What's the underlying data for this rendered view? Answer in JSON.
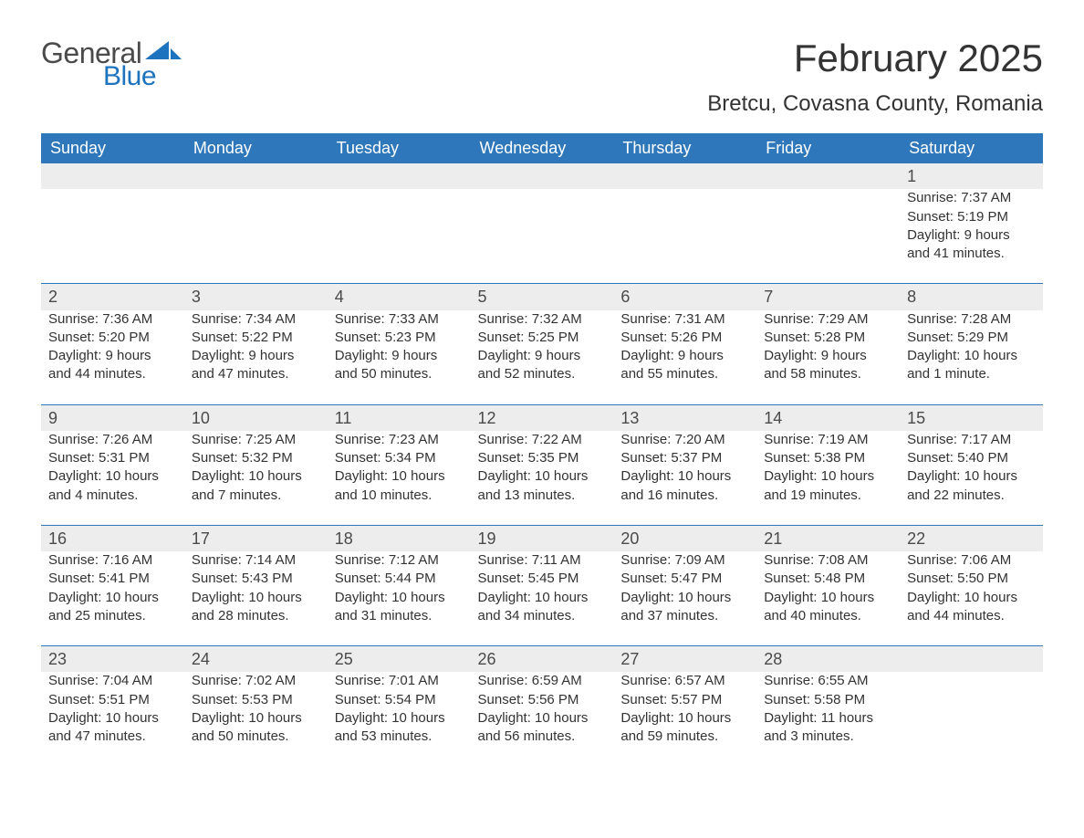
{
  "logo": {
    "general": "General",
    "blue": "Blue"
  },
  "title": "February 2025",
  "location": "Bretcu, Covasna County, Romania",
  "colors": {
    "header_bg": "#2e77bb",
    "header_text": "#ffffff",
    "daynum_bg": "#ededed",
    "row_divider": "#2e77bb",
    "text": "#333333",
    "logo_blue": "#1e73be",
    "logo_gray": "#4a4a4a",
    "page_bg": "#ffffff"
  },
  "typography": {
    "title_fontsize": 42,
    "location_fontsize": 24,
    "weekday_fontsize": 18,
    "daynum_fontsize": 18,
    "cell_fontsize": 15
  },
  "weekdays": [
    "Sunday",
    "Monday",
    "Tuesday",
    "Wednesday",
    "Thursday",
    "Friday",
    "Saturday"
  ],
  "weeks": [
    [
      null,
      null,
      null,
      null,
      null,
      null,
      {
        "day": "1",
        "sunrise": "Sunrise: 7:37 AM",
        "sunset": "Sunset: 5:19 PM",
        "daylight1": "Daylight: 9 hours",
        "daylight2": "and 41 minutes."
      }
    ],
    [
      {
        "day": "2",
        "sunrise": "Sunrise: 7:36 AM",
        "sunset": "Sunset: 5:20 PM",
        "daylight1": "Daylight: 9 hours",
        "daylight2": "and 44 minutes."
      },
      {
        "day": "3",
        "sunrise": "Sunrise: 7:34 AM",
        "sunset": "Sunset: 5:22 PM",
        "daylight1": "Daylight: 9 hours",
        "daylight2": "and 47 minutes."
      },
      {
        "day": "4",
        "sunrise": "Sunrise: 7:33 AM",
        "sunset": "Sunset: 5:23 PM",
        "daylight1": "Daylight: 9 hours",
        "daylight2": "and 50 minutes."
      },
      {
        "day": "5",
        "sunrise": "Sunrise: 7:32 AM",
        "sunset": "Sunset: 5:25 PM",
        "daylight1": "Daylight: 9 hours",
        "daylight2": "and 52 minutes."
      },
      {
        "day": "6",
        "sunrise": "Sunrise: 7:31 AM",
        "sunset": "Sunset: 5:26 PM",
        "daylight1": "Daylight: 9 hours",
        "daylight2": "and 55 minutes."
      },
      {
        "day": "7",
        "sunrise": "Sunrise: 7:29 AM",
        "sunset": "Sunset: 5:28 PM",
        "daylight1": "Daylight: 9 hours",
        "daylight2": "and 58 minutes."
      },
      {
        "day": "8",
        "sunrise": "Sunrise: 7:28 AM",
        "sunset": "Sunset: 5:29 PM",
        "daylight1": "Daylight: 10 hours",
        "daylight2": "and 1 minute."
      }
    ],
    [
      {
        "day": "9",
        "sunrise": "Sunrise: 7:26 AM",
        "sunset": "Sunset: 5:31 PM",
        "daylight1": "Daylight: 10 hours",
        "daylight2": "and 4 minutes."
      },
      {
        "day": "10",
        "sunrise": "Sunrise: 7:25 AM",
        "sunset": "Sunset: 5:32 PM",
        "daylight1": "Daylight: 10 hours",
        "daylight2": "and 7 minutes."
      },
      {
        "day": "11",
        "sunrise": "Sunrise: 7:23 AM",
        "sunset": "Sunset: 5:34 PM",
        "daylight1": "Daylight: 10 hours",
        "daylight2": "and 10 minutes."
      },
      {
        "day": "12",
        "sunrise": "Sunrise: 7:22 AM",
        "sunset": "Sunset: 5:35 PM",
        "daylight1": "Daylight: 10 hours",
        "daylight2": "and 13 minutes."
      },
      {
        "day": "13",
        "sunrise": "Sunrise: 7:20 AM",
        "sunset": "Sunset: 5:37 PM",
        "daylight1": "Daylight: 10 hours",
        "daylight2": "and 16 minutes."
      },
      {
        "day": "14",
        "sunrise": "Sunrise: 7:19 AM",
        "sunset": "Sunset: 5:38 PM",
        "daylight1": "Daylight: 10 hours",
        "daylight2": "and 19 minutes."
      },
      {
        "day": "15",
        "sunrise": "Sunrise: 7:17 AM",
        "sunset": "Sunset: 5:40 PM",
        "daylight1": "Daylight: 10 hours",
        "daylight2": "and 22 minutes."
      }
    ],
    [
      {
        "day": "16",
        "sunrise": "Sunrise: 7:16 AM",
        "sunset": "Sunset: 5:41 PM",
        "daylight1": "Daylight: 10 hours",
        "daylight2": "and 25 minutes."
      },
      {
        "day": "17",
        "sunrise": "Sunrise: 7:14 AM",
        "sunset": "Sunset: 5:43 PM",
        "daylight1": "Daylight: 10 hours",
        "daylight2": "and 28 minutes."
      },
      {
        "day": "18",
        "sunrise": "Sunrise: 7:12 AM",
        "sunset": "Sunset: 5:44 PM",
        "daylight1": "Daylight: 10 hours",
        "daylight2": "and 31 minutes."
      },
      {
        "day": "19",
        "sunrise": "Sunrise: 7:11 AM",
        "sunset": "Sunset: 5:45 PM",
        "daylight1": "Daylight: 10 hours",
        "daylight2": "and 34 minutes."
      },
      {
        "day": "20",
        "sunrise": "Sunrise: 7:09 AM",
        "sunset": "Sunset: 5:47 PM",
        "daylight1": "Daylight: 10 hours",
        "daylight2": "and 37 minutes."
      },
      {
        "day": "21",
        "sunrise": "Sunrise: 7:08 AM",
        "sunset": "Sunset: 5:48 PM",
        "daylight1": "Daylight: 10 hours",
        "daylight2": "and 40 minutes."
      },
      {
        "day": "22",
        "sunrise": "Sunrise: 7:06 AM",
        "sunset": "Sunset: 5:50 PM",
        "daylight1": "Daylight: 10 hours",
        "daylight2": "and 44 minutes."
      }
    ],
    [
      {
        "day": "23",
        "sunrise": "Sunrise: 7:04 AM",
        "sunset": "Sunset: 5:51 PM",
        "daylight1": "Daylight: 10 hours",
        "daylight2": "and 47 minutes."
      },
      {
        "day": "24",
        "sunrise": "Sunrise: 7:02 AM",
        "sunset": "Sunset: 5:53 PM",
        "daylight1": "Daylight: 10 hours",
        "daylight2": "and 50 minutes."
      },
      {
        "day": "25",
        "sunrise": "Sunrise: 7:01 AM",
        "sunset": "Sunset: 5:54 PM",
        "daylight1": "Daylight: 10 hours",
        "daylight2": "and 53 minutes."
      },
      {
        "day": "26",
        "sunrise": "Sunrise: 6:59 AM",
        "sunset": "Sunset: 5:56 PM",
        "daylight1": "Daylight: 10 hours",
        "daylight2": "and 56 minutes."
      },
      {
        "day": "27",
        "sunrise": "Sunrise: 6:57 AM",
        "sunset": "Sunset: 5:57 PM",
        "daylight1": "Daylight: 10 hours",
        "daylight2": "and 59 minutes."
      },
      {
        "day": "28",
        "sunrise": "Sunrise: 6:55 AM",
        "sunset": "Sunset: 5:58 PM",
        "daylight1": "Daylight: 11 hours",
        "daylight2": "and 3 minutes."
      },
      null
    ]
  ]
}
